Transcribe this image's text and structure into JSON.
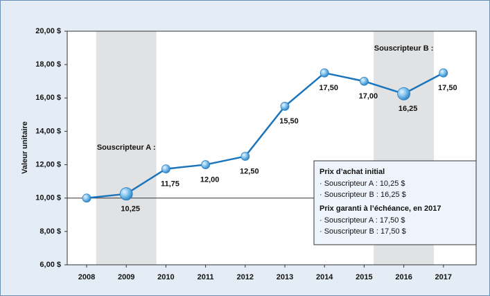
{
  "chart_data": {
    "type": "line",
    "y_label": "Valeur unitaire",
    "categories": [
      "2008",
      "2009",
      "2010",
      "2011",
      "2012",
      "2013",
      "2014",
      "2015",
      "2016",
      "2017"
    ],
    "values": [
      10.0,
      10.25,
      11.75,
      12.0,
      12.5,
      15.5,
      17.5,
      17.0,
      16.25,
      17.5
    ],
    "value_labels": [
      null,
      "10,25",
      "11,75",
      "12,00",
      "12,50",
      "15,50",
      "17,50",
      "17,00",
      "16,25",
      "17,50"
    ],
    "color": "#1a75bc",
    "ylim": [
      6,
      20
    ],
    "yticks": [
      {
        "value": 6,
        "label": "6,00 $"
      },
      {
        "value": 8,
        "label": "8,00 $"
      },
      {
        "value": 10,
        "label": "10,00 $"
      },
      {
        "value": 12,
        "label": "12,00 $"
      },
      {
        "value": 14,
        "label": "14,00 $"
      },
      {
        "value": 16,
        "label": "16,00 $"
      },
      {
        "value": 18,
        "label": "18,00 $"
      },
      {
        "value": 20,
        "label": "20,00 $"
      }
    ],
    "reference_line": 10,
    "annotations": [
      {
        "text": "Souscripteur A :",
        "x": "2009"
      },
      {
        "text": "Souscripteur B :",
        "x": "2016"
      }
    ],
    "info_box": [
      {
        "heading": "Prix d’achat initial",
        "items": [
          "· Souscripteur A : 10,25 $",
          "· Souscripteur B : 16,25 $"
        ]
      },
      {
        "heading": "Prix garanti à l’échéance, en 2017",
        "items": [
          "· Souscripteur A : 17,50 $",
          "· Souscripteur B : 17,50 $"
        ]
      }
    ]
  }
}
